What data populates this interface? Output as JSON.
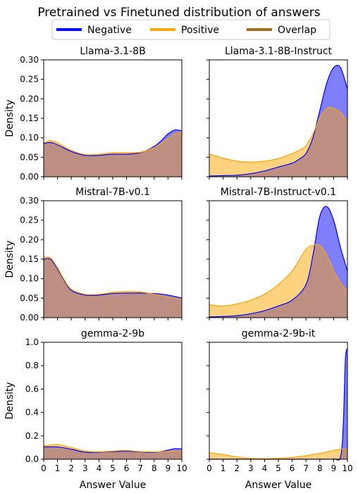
{
  "figure": {
    "title": "Pretrained vs Finetuned distribution of answers",
    "legend": [
      {
        "label": "Negative",
        "color": "#0000ff"
      },
      {
        "label": "Positive",
        "color": "#ffa500"
      },
      {
        "label": "Overlap",
        "color": "#a86a1e"
      }
    ],
    "colors": {
      "negative_fill": "#7f7ffd",
      "negative_line": "#0000ff",
      "positive_fill": "#ffd27f",
      "positive_line": "#ffa500",
      "overlap_fill": "#bc8f82"
    }
  },
  "chart_data": [
    {
      "type": "area",
      "title": "Llama-3.1-8B",
      "ylabel": "Density",
      "xlabel": "",
      "xlim": [
        0,
        10
      ],
      "ylim": [
        0,
        0.3
      ],
      "yticks": [
        "0.00",
        "0.05",
        "0.10",
        "0.15",
        "0.20",
        "0.25",
        "0.30"
      ],
      "x": [
        0,
        0.5,
        1,
        2,
        3,
        4,
        5,
        6,
        7,
        8,
        8.5,
        9,
        9.5,
        10
      ],
      "series": [
        {
          "name": "Negative",
          "values": [
            0.085,
            0.088,
            0.082,
            0.065,
            0.055,
            0.055,
            0.058,
            0.058,
            0.062,
            0.078,
            0.092,
            0.11,
            0.12,
            0.118
          ]
        },
        {
          "name": "Positive",
          "values": [
            0.088,
            0.093,
            0.087,
            0.068,
            0.057,
            0.058,
            0.062,
            0.062,
            0.063,
            0.075,
            0.085,
            0.098,
            0.11,
            0.115
          ]
        }
      ]
    },
    {
      "type": "area",
      "title": "Llama-3.1-8B-Instruct",
      "ylabel": "",
      "xlabel": "",
      "xlim": [
        0,
        10
      ],
      "ylim": [
        0,
        0.3
      ],
      "x": [
        0,
        1,
        2,
        3,
        4,
        5,
        6,
        6.5,
        7,
        7.5,
        8,
        8.5,
        9,
        9.5,
        10
      ],
      "series": [
        {
          "name": "Negative",
          "values": [
            0.002,
            0.003,
            0.004,
            0.008,
            0.015,
            0.025,
            0.035,
            0.045,
            0.06,
            0.1,
            0.17,
            0.24,
            0.28,
            0.28,
            0.225
          ]
        },
        {
          "name": "Positive",
          "values": [
            0.058,
            0.048,
            0.04,
            0.038,
            0.04,
            0.047,
            0.06,
            0.068,
            0.08,
            0.11,
            0.15,
            0.175,
            0.175,
            0.165,
            0.14
          ]
        }
      ]
    },
    {
      "type": "area",
      "title": "Mistral-7B-v0.1",
      "ylabel": "Density",
      "xlabel": "",
      "xlim": [
        0,
        10
      ],
      "ylim": [
        0,
        0.3
      ],
      "yticks": [
        "0.00",
        "0.05",
        "0.10",
        "0.15",
        "0.20",
        "0.25",
        "0.30"
      ],
      "x": [
        0,
        0.5,
        1,
        1.5,
        2,
        3,
        4,
        5,
        6,
        7,
        8,
        9,
        10
      ],
      "series": [
        {
          "name": "Negative",
          "values": [
            0.15,
            0.15,
            0.125,
            0.095,
            0.07,
            0.058,
            0.058,
            0.062,
            0.063,
            0.063,
            0.062,
            0.058,
            0.05
          ]
        },
        {
          "name": "Positive",
          "values": [
            0.155,
            0.153,
            0.128,
            0.097,
            0.073,
            0.06,
            0.06,
            0.065,
            0.067,
            0.066,
            0.06,
            0.053,
            0.048
          ]
        }
      ]
    },
    {
      "type": "area",
      "title": "Mistral-7B-Instruct-v0.1",
      "ylabel": "",
      "xlabel": "",
      "xlim": [
        0,
        10
      ],
      "ylim": [
        0,
        0.3
      ],
      "x": [
        0,
        1,
        2,
        3,
        4,
        5,
        6,
        7,
        7.5,
        8,
        8.5,
        9,
        9.5,
        10
      ],
      "series": [
        {
          "name": "Negative",
          "values": [
            0.002,
            0.003,
            0.005,
            0.01,
            0.018,
            0.03,
            0.045,
            0.085,
            0.16,
            0.26,
            0.285,
            0.25,
            0.18,
            0.12
          ]
        },
        {
          "name": "Positive",
          "values": [
            0.033,
            0.03,
            0.035,
            0.045,
            0.06,
            0.085,
            0.12,
            0.175,
            0.185,
            0.185,
            0.16,
            0.12,
            0.09,
            0.068
          ]
        }
      ]
    },
    {
      "type": "area",
      "title": "gemma-2-9b",
      "ylabel": "Density",
      "xlabel": "Answer Value",
      "xlim": [
        0,
        10
      ],
      "ylim": [
        0,
        1.0
      ],
      "yticks": [
        "0.0",
        "0.2",
        "0.4",
        "0.6",
        "0.8",
        "1.0"
      ],
      "x": [
        0,
        1,
        2,
        3,
        4,
        5,
        6,
        7,
        8,
        9,
        9.5,
        10
      ],
      "series": [
        {
          "name": "Negative",
          "values": [
            0.105,
            0.105,
            0.085,
            0.06,
            0.06,
            0.065,
            0.068,
            0.063,
            0.058,
            0.078,
            0.09,
            0.088
          ]
        },
        {
          "name": "Positive",
          "values": [
            0.115,
            0.125,
            0.1,
            0.07,
            0.063,
            0.07,
            0.075,
            0.065,
            0.062,
            0.068,
            0.07,
            0.072
          ]
        }
      ]
    },
    {
      "type": "area",
      "title": "gemma-2-9b-it",
      "ylabel": "",
      "xlabel": "Answer Value",
      "xlim": [
        0,
        10
      ],
      "ylim": [
        0,
        1.0
      ],
      "x": [
        0,
        1,
        2,
        3,
        4,
        5,
        6,
        7,
        8,
        9,
        9.5,
        9.7,
        9.85,
        10
      ],
      "series": [
        {
          "name": "Negative",
          "values": [
            0,
            0,
            0,
            0,
            0,
            0,
            0,
            0,
            0,
            0.002,
            0.02,
            0.3,
            0.85,
            0.95
          ]
        },
        {
          "name": "Positive",
          "values": [
            0.055,
            0.04,
            0.02,
            0.008,
            0.005,
            0.008,
            0.015,
            0.03,
            0.05,
            0.075,
            0.085,
            0.085,
            0.085,
            0.08
          ]
        }
      ]
    }
  ]
}
